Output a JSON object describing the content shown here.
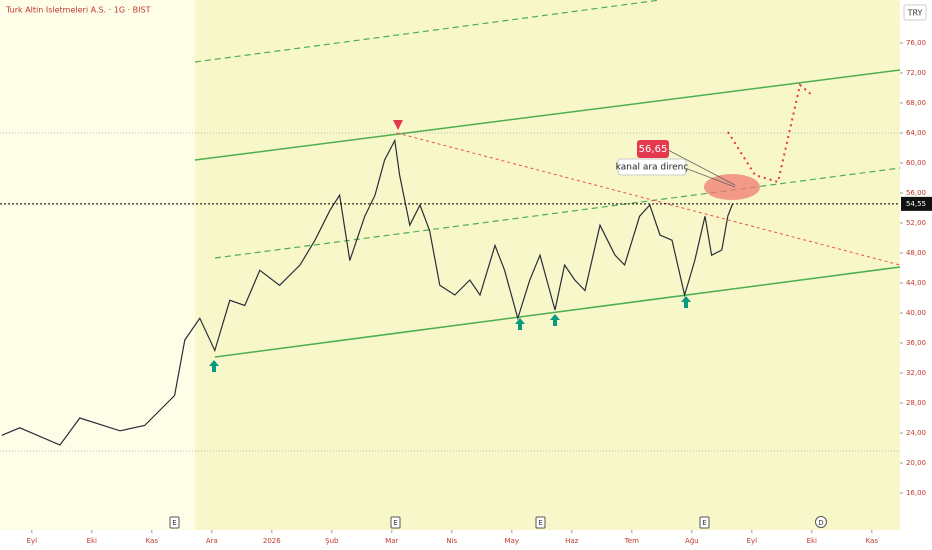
{
  "chart_data": {
    "type": "line",
    "title": "Turk Altin Isletmeleri A.S. · 1G · BIST",
    "currency": "TRY",
    "x": [
      -0.5,
      -0.2,
      0.47,
      0.8,
      1.47,
      1.88,
      2.13,
      2.38,
      2.55,
      2.8,
      3.05,
      3.3,
      3.55,
      3.8,
      4.13,
      4.47,
      4.72,
      4.97,
      5.13,
      5.3,
      5.55,
      5.72,
      5.88,
      6.05,
      6.13,
      6.3,
      6.47,
      6.63,
      6.8,
      7.05,
      7.3,
      7.47,
      7.72,
      7.88,
      8.1,
      8.3,
      8.47,
      8.72,
      8.88,
      9.05,
      9.22,
      9.47,
      9.72,
      9.88,
      10.13,
      10.3,
      10.47,
      10.67,
      10.88,
      11.05,
      11.22,
      11.33,
      11.5,
      11.6,
      11.68
    ],
    "values": [
      23.7,
      24.7,
      22.4,
      26,
      24.3,
      25,
      27,
      29,
      36.4,
      39.3,
      35,
      41.7,
      41,
      45.7,
      43.7,
      46.4,
      49.7,
      53.7,
      55.7,
      47,
      52.9,
      55.7,
      60.4,
      63,
      58.4,
      51.7,
      54.4,
      51,
      43.7,
      42.4,
      44.4,
      42.4,
      49,
      45.7,
      39.3,
      44.4,
      47.7,
      40.4,
      46.4,
      44.4,
      43,
      51.7,
      47.7,
      46.4,
      52.9,
      54.4,
      50.4,
      49.7,
      42.4,
      47,
      52.9,
      47.7,
      48.4,
      52.9,
      54.55
    ],
    "color": "#2a2e39",
    "xlim": [
      -0.53,
      14.47
    ],
    "xticks": [
      {
        "value": 0,
        "label": "Eyl"
      },
      {
        "value": 1,
        "label": "Eki"
      },
      {
        "value": 2,
        "label": "Kas"
      },
      {
        "value": 3,
        "label": "Ara"
      },
      {
        "value": 4,
        "label": "2026"
      },
      {
        "value": 5,
        "label": "Şub"
      },
      {
        "value": 6,
        "label": "Mar"
      },
      {
        "value": 7,
        "label": "Nis"
      },
      {
        "value": 8,
        "label": "May"
      },
      {
        "value": 9,
        "label": "Haz"
      },
      {
        "value": 10,
        "label": "Tem"
      },
      {
        "value": 11,
        "label": "Ağu"
      },
      {
        "value": 12,
        "label": "Eyl"
      },
      {
        "value": 13,
        "label": "Eki"
      },
      {
        "value": 14,
        "label": "Kas"
      }
    ],
    "ylim": [
      11.07,
      81.73
    ],
    "yticks": [
      {
        "value": 16,
        "label": "16,00"
      },
      {
        "value": 20,
        "label": "20,00"
      },
      {
        "value": 24,
        "label": "24,00"
      },
      {
        "value": 28,
        "label": "28,00"
      },
      {
        "value": 32,
        "label": "32,00"
      },
      {
        "value": 36,
        "label": "36,00"
      },
      {
        "value": 40,
        "label": "40,00"
      },
      {
        "value": 44,
        "label": "44,00"
      },
      {
        "value": 48,
        "label": "48,00"
      },
      {
        "value": 52,
        "label": "52,00"
      },
      {
        "value": 56,
        "label": "56,00"
      },
      {
        "value": 60,
        "label": "60,00"
      },
      {
        "value": 64,
        "label": "64,00"
      },
      {
        "value": 68,
        "label": "68,00"
      },
      {
        "value": 72,
        "label": "72,00"
      },
      {
        "value": 76,
        "label": "76,00"
      }
    ],
    "last_price": {
      "value": 54.55,
      "label": "54,55"
    },
    "target": {
      "value": 56.65,
      "label": "56,65"
    },
    "annotation": "kanal ara direnç",
    "events": [
      "E",
      "E",
      "E",
      "E",
      "D"
    ]
  }
}
